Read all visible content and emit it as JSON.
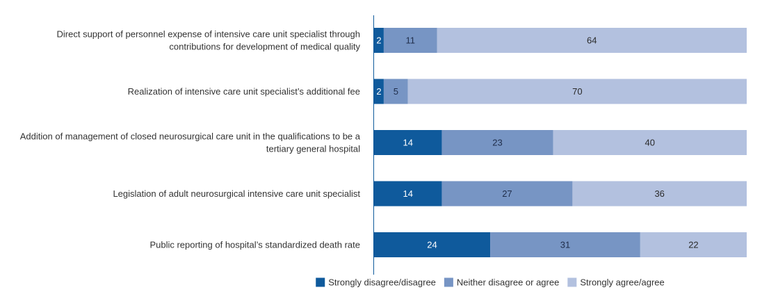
{
  "chart_data": {
    "type": "bar",
    "orientation": "horizontal",
    "stacked": true,
    "categories": [
      [
        "Direct support of personnel expense of intensive care unit specialist through",
        "contributions for development of medical quality"
      ],
      [
        "Realization of intensive care unit specialist’s additional fee"
      ],
      [
        "Addition of management of closed neurosurgical care unit in the qualifications to be a",
        "tertiary general hospital"
      ],
      [
        "Legislation of adult neurosurgical intensive care unit specialist"
      ],
      [
        "Public reporting of hospital’s standardized death rate"
      ]
    ],
    "series": [
      {
        "name": "Strongly disagree/disagree",
        "color": "#0f5a9c",
        "label_color": "#ffffff",
        "values": [
          2,
          2,
          14,
          14,
          24
        ]
      },
      {
        "name": "Neither disagree or agree",
        "color": "#7795c4",
        "label_color": "#1f2d4a",
        "values": [
          11,
          5,
          23,
          27,
          31
        ]
      },
      {
        "name": "Strongly agree/agree",
        "color": "#b3c1df",
        "label_color": "#2a2a2a",
        "values": [
          64,
          70,
          40,
          36,
          22
        ]
      }
    ],
    "xlim": [
      0,
      77
    ],
    "grid": false,
    "legend": "bottom",
    "title": "",
    "xlabel": "",
    "ylabel": ""
  }
}
